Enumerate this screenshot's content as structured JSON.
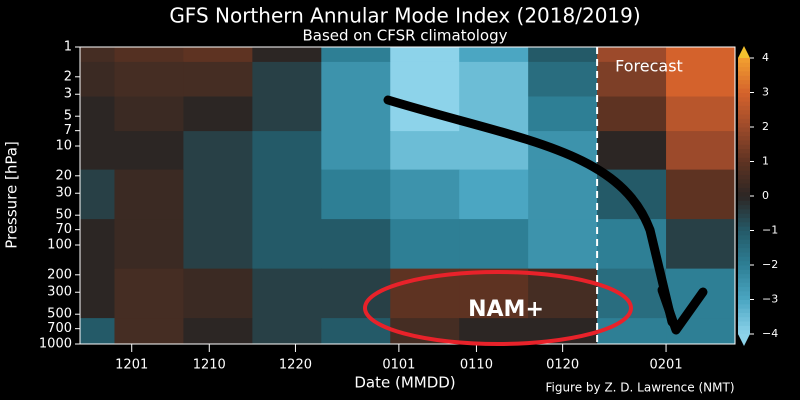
{
  "chart_data": {
    "type": "contour",
    "title": "GFS Northern Annular Mode Index (2018/2019)",
    "subtitle": "Based on CFSR climatology",
    "x_label": "Date (MMDD)",
    "y_label": "Pressure [hPa]",
    "credit": "Figure by Z. D. Lawrence (NMT)",
    "annotations": [
      "Forecast",
      "NAM+"
    ],
    "forecast_start": 54,
    "x": [
      -6,
      2,
      10,
      18,
      26,
      34,
      42,
      50,
      58,
      66
    ],
    "y": [
      1,
      2,
      5,
      10,
      30,
      100,
      300,
      1000
    ],
    "values": [
      [
        0.5,
        0.8,
        1,
        0,
        -2,
        -4,
        -3,
        -1,
        2,
        3
      ],
      [
        0.3,
        0.5,
        0.5,
        -0.5,
        -2.5,
        -4,
        -3.5,
        -1.5,
        1.5,
        3
      ],
      [
        0,
        0.3,
        0,
        -0.5,
        -2.5,
        -4,
        -3.5,
        -2,
        1,
        2.5
      ],
      [
        0,
        0,
        -0.5,
        -1,
        -2.5,
        -3.5,
        -3.5,
        -2.5,
        0,
        2
      ],
      [
        -0.5,
        0.3,
        -0.5,
        -1,
        -2,
        -2.5,
        -3,
        -2.5,
        -1,
        1
      ],
      [
        0,
        0.3,
        -0.5,
        -1,
        -1,
        -2,
        -2,
        -2.5,
        -2,
        -0.5
      ],
      [
        0,
        0.5,
        0.3,
        -0.5,
        -0.5,
        1,
        1,
        0.5,
        -1.5,
        -2
      ],
      [
        -1,
        0.5,
        0,
        -0.5,
        -1,
        0.5,
        0,
        0,
        -2,
        -2
      ]
    ],
    "xlim": [
      -6,
      70
    ],
    "xticks": [
      {
        "value": 0,
        "label": "1201"
      },
      {
        "value": 9,
        "label": "1210"
      },
      {
        "value": 19,
        "label": "1220"
      },
      {
        "value": 31,
        "label": "0101"
      },
      {
        "value": 40,
        "label": "0110"
      },
      {
        "value": 50,
        "label": "0120"
      },
      {
        "value": 62,
        "label": "0201"
      }
    ],
    "ylim": [
      1000,
      1
    ],
    "log_y": true,
    "yticks": [
      1,
      2,
      3,
      5,
      7,
      10,
      20,
      30,
      50,
      70,
      100,
      200,
      300,
      500,
      700,
      1000
    ],
    "colorbar_lim": [
      -4,
      4
    ],
    "colorbar_ticks": [
      {
        "value": -4,
        "label": "−4"
      },
      {
        "value": -3,
        "label": "−3"
      },
      {
        "value": -2,
        "label": "−2"
      },
      {
        "value": -1,
        "label": "−1"
      },
      0,
      1,
      2,
      3,
      4
    ],
    "colorscale": [
      "#8dd3ea",
      "#4ba6c2",
      "#2e7f95",
      "#245a68",
      "#2c2624",
      "#5e3322",
      "#9c4a2b",
      "#d4622c",
      "#f2a030"
    ]
  }
}
